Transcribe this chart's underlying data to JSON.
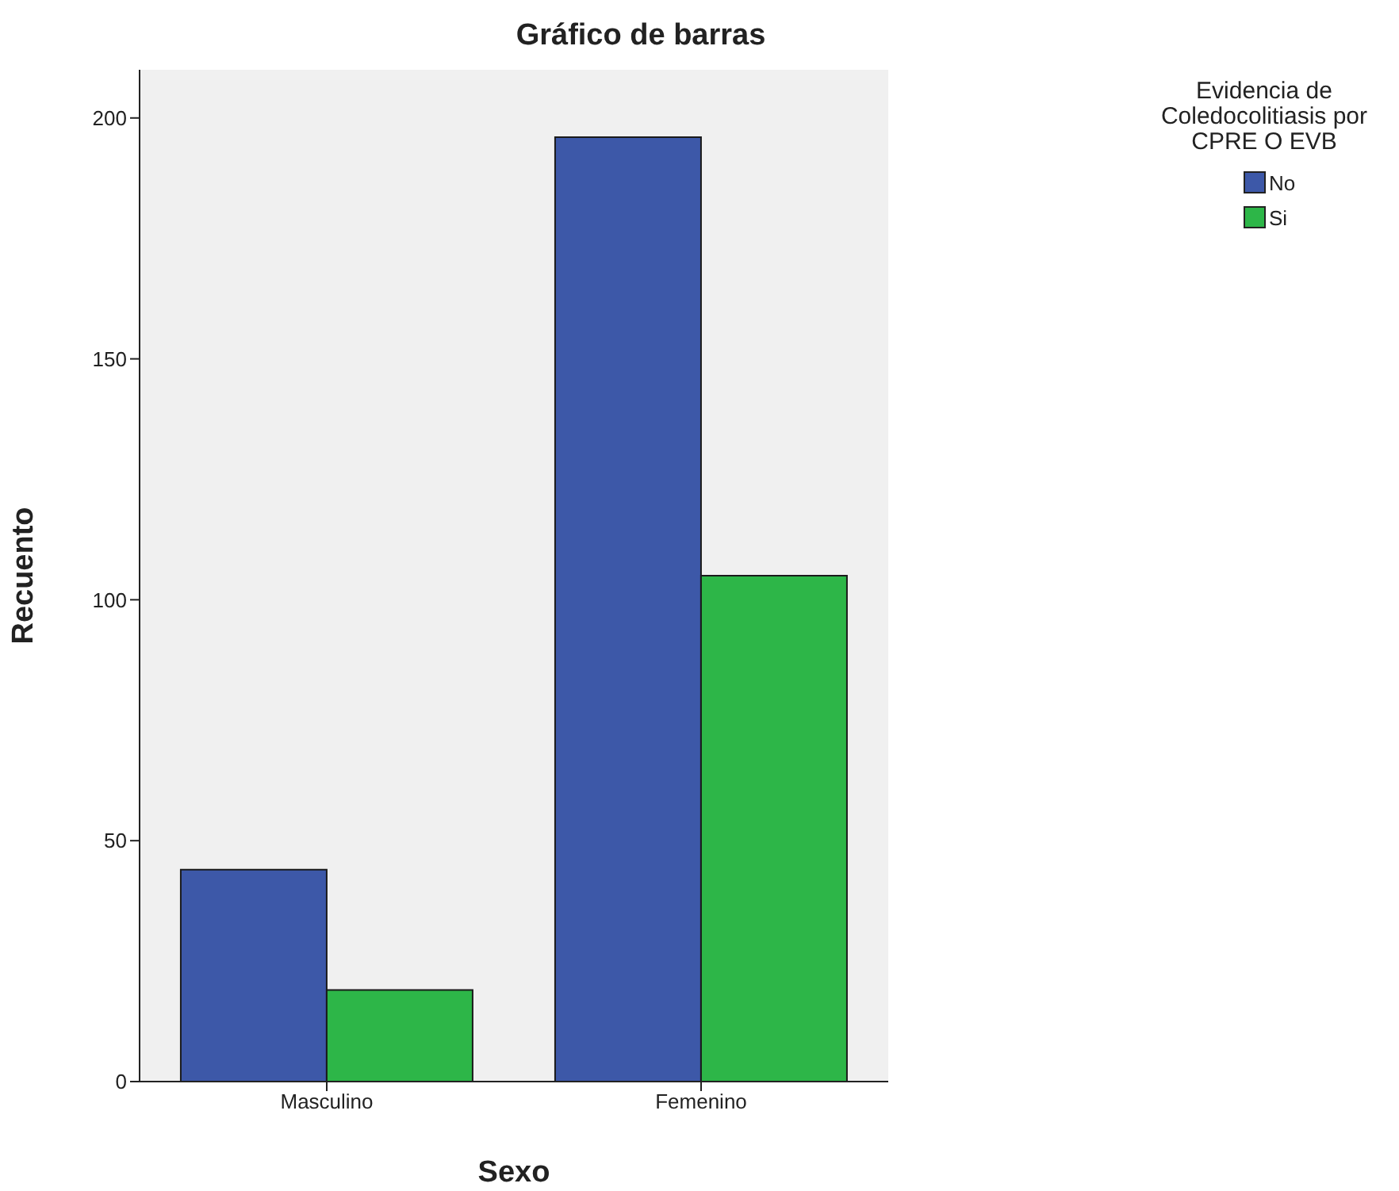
{
  "chart_data": {
    "type": "bar",
    "title": "Gráfico de barras",
    "xlabel": "Sexo",
    "ylabel": "Recuento",
    "legend_title": "Evidencia de Coledocolitiasis por CPRE O EVB",
    "categories": [
      "Masculino",
      "Femenino"
    ],
    "series": [
      {
        "name": "No",
        "color": "#3d58a8",
        "values": [
          44,
          196
        ]
      },
      {
        "name": "Si",
        "color": "#2db648",
        "values": [
          19,
          105
        ]
      }
    ],
    "ylim": [
      0,
      210
    ],
    "yticks": [
      0,
      50,
      100,
      150,
      200
    ],
    "grid": false,
    "legend": "top right"
  }
}
